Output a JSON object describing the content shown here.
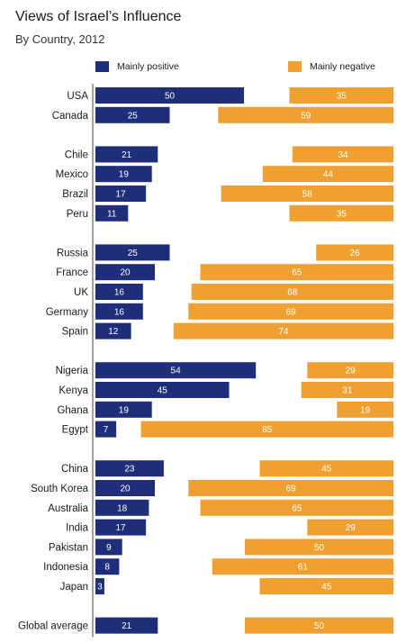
{
  "chart_data": {
    "type": "bar",
    "title": "Views of Israel’s Influence",
    "subtitle": "By Country, 2012",
    "colors": {
      "positive": "#1f2e7a",
      "negative": "#f0a030"
    },
    "series": [
      {
        "name": "Mainly positive"
      },
      {
        "name": "Mainly negative"
      }
    ],
    "groups": [
      {
        "rows": [
          {
            "country": "USA",
            "positive": 50,
            "negative": 35
          },
          {
            "country": "Canada",
            "positive": 25,
            "negative": 59
          }
        ]
      },
      {
        "rows": [
          {
            "country": "Chile",
            "positive": 21,
            "negative": 34
          },
          {
            "country": "Mexico",
            "positive": 19,
            "negative": 44
          },
          {
            "country": "Brazil",
            "positive": 17,
            "negative": 58
          },
          {
            "country": "Peru",
            "positive": 11,
            "negative": 35
          }
        ]
      },
      {
        "rows": [
          {
            "country": "Russia",
            "positive": 25,
            "negative": 26
          },
          {
            "country": "France",
            "positive": 20,
            "negative": 65
          },
          {
            "country": "UK",
            "positive": 16,
            "negative": 68
          },
          {
            "country": "Germany",
            "positive": 16,
            "negative": 69
          },
          {
            "country": "Spain",
            "positive": 12,
            "negative": 74
          }
        ]
      },
      {
        "rows": [
          {
            "country": "Nigeria",
            "positive": 54,
            "negative": 29
          },
          {
            "country": "Kenya",
            "positive": 45,
            "negative": 31
          },
          {
            "country": "Ghana",
            "positive": 19,
            "negative": 19
          },
          {
            "country": "Egypt",
            "positive": 7,
            "negative": 85
          }
        ]
      },
      {
        "rows": [
          {
            "country": "China",
            "positive": 23,
            "negative": 45
          },
          {
            "country": "South Korea",
            "positive": 20,
            "negative": 69
          },
          {
            "country": "Australia",
            "positive": 18,
            "negative": 65
          },
          {
            "country": "India",
            "positive": 17,
            "negative": 29
          },
          {
            "country": "Pakistan",
            "positive": 9,
            "negative": 50
          },
          {
            "country": "Indonesia",
            "positive": 8,
            "negative": 61
          },
          {
            "country": "Japan",
            "positive": 3,
            "negative": 45
          }
        ]
      },
      {
        "rows": [
          {
            "country": "Global average",
            "positive": 21,
            "negative": 50
          }
        ]
      }
    ]
  }
}
